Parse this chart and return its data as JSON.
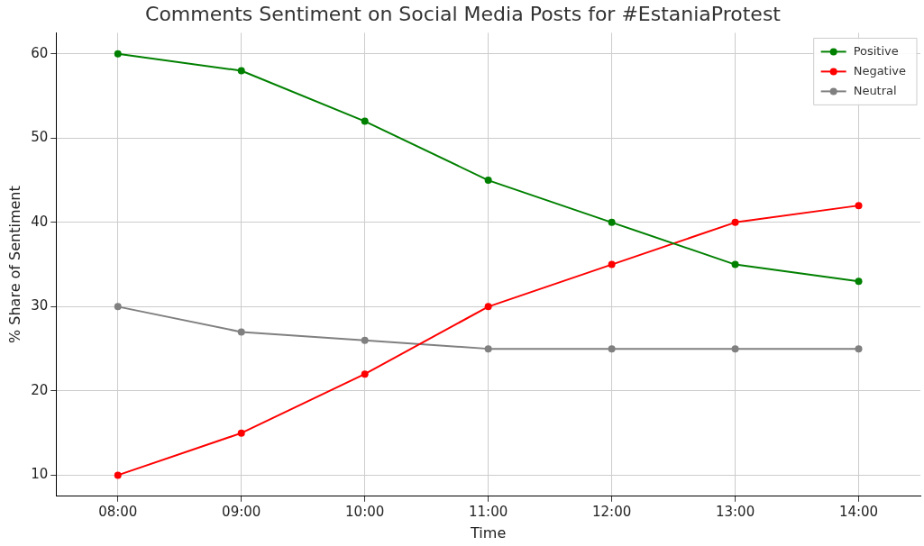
{
  "chart_data": {
    "type": "line",
    "title": "Comments Sentiment on Social Media Posts for #EstaniaProtest",
    "xlabel": "Time",
    "ylabel": "% Share of Sentiment",
    "categories": [
      "08:00",
      "09:00",
      "10:00",
      "11:00",
      "12:00",
      "13:00",
      "14:00"
    ],
    "series": [
      {
        "name": "Positive",
        "color": "#008000",
        "values": [
          60,
          58,
          52,
          45,
          40,
          35,
          33
        ]
      },
      {
        "name": "Negative",
        "color": "#ff0000",
        "values": [
          10,
          15,
          22,
          30,
          35,
          40,
          42
        ]
      },
      {
        "name": "Neutral",
        "color": "#808080",
        "values": [
          30,
          27,
          26,
          25,
          25,
          25,
          25
        ]
      }
    ],
    "ylim": [
      7.5,
      62.5
    ],
    "yticks": [
      10,
      20,
      30,
      40,
      50,
      60
    ],
    "grid": true,
    "legend": "top right",
    "marker": "circle",
    "line_style": "solid"
  }
}
